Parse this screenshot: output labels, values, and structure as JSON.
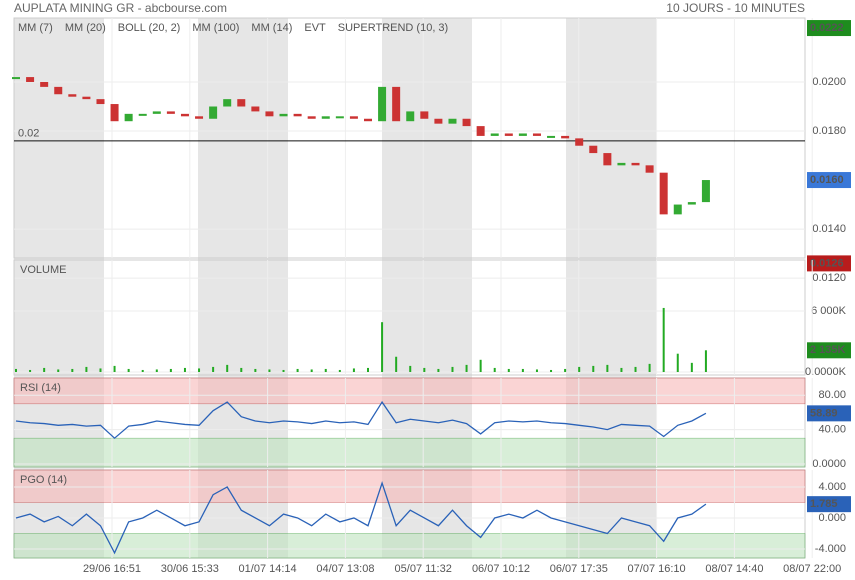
{
  "header": {
    "title": "AUPLATA MINING GR - abcbourse.com",
    "period": "10 JOURS - 10 MINUTES"
  },
  "x_axis_labels": [
    "29/06 16:51",
    "30/06 15:33",
    "01/07 14:14",
    "04/07 13:08",
    "05/07 11:32",
    "06/07 10:12",
    "06/07 17:35",
    "07/07 16:10",
    "08/07 14:40",
    "08/07 22:00"
  ],
  "chart_data": [
    {
      "type": "candlestick",
      "indicators": [
        {
          "name": "MM (7)",
          "color": "#3333cc"
        },
        {
          "name": "MM (20)",
          "color": "#cc2222"
        },
        {
          "name": "BOLL (20, 2)",
          "color": "#f0a050"
        },
        {
          "name": "MM (100)",
          "color": "#22aa22"
        },
        {
          "name": "MM (14)",
          "color": "#333333"
        },
        {
          "name": "EVT",
          "color": "#111111"
        },
        {
          "name": "SUPERTREND (10, 3)",
          "color": "#aa2233"
        }
      ],
      "values": [
        0.0202,
        0.02,
        0.0198,
        0.0195,
        0.0194,
        0.0193,
        0.0191,
        0.0184,
        0.0187,
        0.0187,
        0.0188,
        0.0187,
        0.0186,
        0.0185,
        0.019,
        0.0193,
        0.019,
        0.0188,
        0.0186,
        0.0187,
        0.0186,
        0.0185,
        0.0186,
        0.0186,
        0.0185,
        0.0184,
        0.0198,
        0.0184,
        0.0188,
        0.0185,
        0.0183,
        0.0185,
        0.0182,
        0.0178,
        0.0179,
        0.0178,
        0.0179,
        0.0178,
        0.0178,
        0.0177,
        0.0174,
        0.0171,
        0.0166,
        0.0167,
        0.0166,
        0.0163,
        0.0146,
        0.015,
        0.0151,
        0.016
      ],
      "up_color": "#33aa33",
      "down_color": "#cc3333",
      "ylim": [
        0.01282,
        0.02261
      ],
      "yticks": [
        {
          "value": 0.02,
          "label": "0.0200"
        },
        {
          "value": 0.018,
          "label": "0.0180"
        },
        {
          "value": 0.014,
          "label": "0.0140"
        },
        {
          "value": 0.012,
          "label": "0.0120"
        }
      ],
      "reference_line": {
        "value": 0.0176,
        "label": "0.02"
      },
      "markers": [
        {
          "value": 0.0222,
          "color": "#1e8c1e"
        },
        {
          "value": 0.016,
          "label": "0.0160",
          "color": "#3a78d8"
        },
        {
          "value": 0.0126,
          "color": "#b81c1c"
        }
      ]
    },
    {
      "type": "bar",
      "title": "VOLUME",
      "color": "#22aa22",
      "values": [
        300,
        200,
        400,
        250,
        300,
        500,
        350,
        600,
        300,
        200,
        250,
        300,
        400,
        350,
        500,
        700,
        400,
        300,
        250,
        200,
        300,
        250,
        300,
        200,
        350,
        400,
        4900,
        1500,
        600,
        400,
        300,
        500,
        700,
        1200,
        400,
        300,
        300,
        250,
        200,
        300,
        500,
        600,
        700,
        400,
        500,
        800,
        6300,
        1800,
        900,
        2135
      ],
      "ylim": [
        0,
        11016
      ],
      "yticks": [
        {
          "value": 6000,
          "label": "6 000K"
        },
        {
          "value": 0,
          "label": "0.0000K"
        }
      ],
      "markers": [
        {
          "value": 2135,
          "label": "2 135K",
          "color": "#1e8c1e"
        }
      ]
    },
    {
      "type": "line",
      "title": "RSI (14)",
      "color": "#2a62b8",
      "values": [
        50,
        48,
        47,
        45,
        46,
        44,
        45,
        30,
        44,
        46,
        50,
        48,
        46,
        45,
        62,
        72,
        55,
        50,
        48,
        50,
        49,
        47,
        50,
        48,
        49,
        46,
        72,
        48,
        52,
        50,
        48,
        51,
        47,
        35,
        48,
        50,
        49,
        50,
        48,
        47,
        45,
        43,
        40,
        46,
        45,
        44,
        32,
        45,
        50,
        58.89
      ],
      "ylim": [
        -3.5,
        100
      ],
      "yticks": [
        {
          "value": 80,
          "label": "80.00"
        },
        {
          "value": 40,
          "label": "40.00"
        },
        {
          "value": 0,
          "label": "0.0000"
        }
      ],
      "upper_zone": [
        70,
        100
      ],
      "lower_zone": [
        -3.5,
        30
      ],
      "markers": [
        {
          "value": 58.89,
          "color": "#2a62b8"
        }
      ]
    },
    {
      "type": "line",
      "title": "PGO (14)",
      "color": "#2a62b8",
      "values": [
        0,
        0.5,
        -0.5,
        0.2,
        -1,
        0.5,
        -1,
        -4.5,
        -0.5,
        0,
        1,
        0,
        -1,
        -0.5,
        3,
        4,
        1,
        0,
        -1,
        0.5,
        0,
        -1,
        0.5,
        -0.5,
        0,
        -1,
        4.5,
        -1,
        1,
        0,
        -1,
        1,
        -1,
        -2.5,
        0,
        0.5,
        0,
        1,
        0,
        -0.5,
        -1,
        -1.5,
        -2,
        0,
        -0.5,
        -1,
        -3,
        0,
        0.5,
        1.785
      ],
      "ylim": [
        -5.16,
        6.19
      ],
      "yticks": [
        {
          "value": 4,
          "label": "4.000"
        },
        {
          "value": 0,
          "label": "0.000"
        },
        {
          "value": -4,
          "label": "-4.000"
        }
      ],
      "upper_zone": [
        2,
        6.19
      ],
      "lower_zone": [
        -5.16,
        -2
      ],
      "markers": [
        {
          "value": 1.785,
          "color": "#2a62b8"
        }
      ]
    }
  ]
}
